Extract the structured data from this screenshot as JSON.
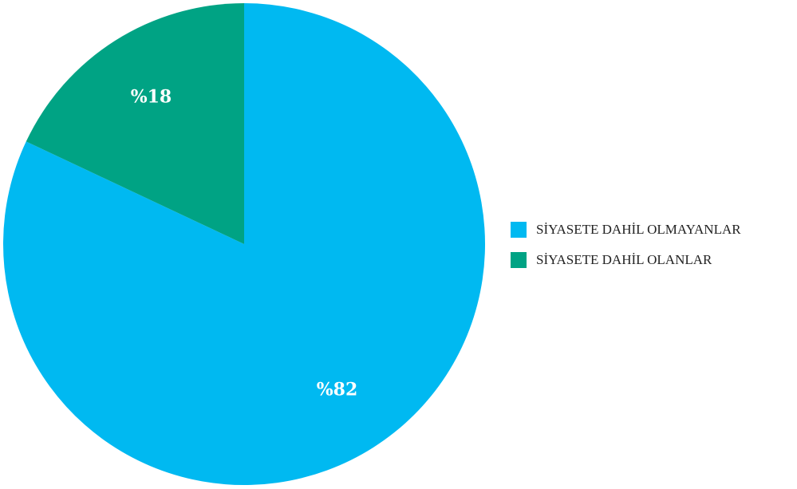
{
  "chart_data": {
    "type": "pie",
    "categories": [
      "SİYASETE DAHİL OLMAYANLAR",
      "SİYASETE DAHİL OLANLAR"
    ],
    "values": [
      82,
      18
    ],
    "value_labels": [
      "%82",
      "%18"
    ],
    "colors": [
      "#00b9f1",
      "#00a384"
    ],
    "legend": "right"
  }
}
